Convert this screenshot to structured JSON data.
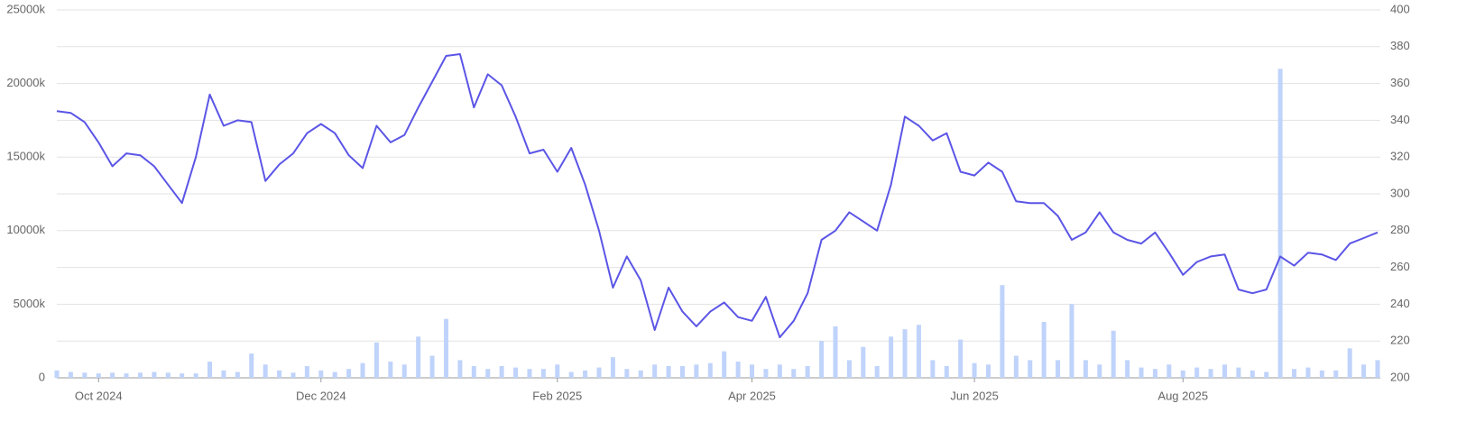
{
  "chart_data": {
    "type": "combo",
    "categories": [
      null,
      null,
      null,
      "Oct 2024",
      null,
      null,
      null,
      null,
      null,
      null,
      null,
      null,
      null,
      null,
      null,
      null,
      null,
      null,
      null,
      "Dec 2024",
      null,
      null,
      null,
      null,
      null,
      null,
      null,
      null,
      null,
      null,
      null,
      null,
      null,
      null,
      null,
      null,
      "Feb 2025",
      null,
      null,
      null,
      null,
      null,
      null,
      null,
      null,
      null,
      null,
      null,
      null,
      null,
      "Apr 2025",
      null,
      null,
      null,
      null,
      null,
      null,
      null,
      null,
      null,
      null,
      null,
      null,
      null,
      null,
      null,
      "Jun 2025",
      null,
      null,
      null,
      null,
      null,
      null,
      null,
      null,
      null,
      null,
      null,
      null,
      null,
      null,
      "Aug 2025",
      null,
      null,
      null,
      null,
      null,
      null,
      null,
      null,
      null,
      null,
      null,
      null,
      null,
      null
    ],
    "series": [
      {
        "type": "bar",
        "color": "#bfd3fb",
        "values": [
          500,
          400,
          350,
          300,
          350,
          300,
          350,
          400,
          350,
          300,
          300,
          1100,
          500,
          400,
          1650,
          900,
          500,
          350,
          800,
          500,
          400,
          600,
          1000,
          2400,
          1100,
          900,
          2800,
          1500,
          4000,
          1200,
          800,
          600,
          800,
          700,
          600,
          600,
          900,
          400,
          500,
          700,
          1400,
          600,
          500,
          900,
          800,
          800,
          900,
          1000,
          1800,
          1100,
          900,
          600,
          900,
          600,
          800,
          2500,
          3500,
          1200,
          2100,
          800,
          2800,
          3300,
          3600,
          1200,
          800,
          2600,
          1000,
          900,
          6300,
          1500,
          1200,
          3800,
          1200,
          5000,
          1200,
          900,
          3200,
          1200,
          700,
          600,
          900,
          500,
          700,
          600,
          900,
          700,
          500,
          400,
          21000,
          600,
          700,
          500,
          500,
          2000,
          900,
          1200
        ]
      },
      {
        "type": "line",
        "axis": "y2",
        "color": "#5b55e6",
        "values": [
          345,
          344,
          339,
          328,
          315,
          322,
          321,
          315,
          305,
          295,
          320,
          354,
          337,
          340,
          339,
          307,
          316,
          322,
          333,
          338,
          333,
          321,
          314,
          337,
          328,
          332,
          347,
          361,
          375,
          376,
          347,
          365,
          359,
          342,
          322,
          324,
          312,
          325,
          305,
          280,
          249,
          266,
          253,
          226,
          249,
          236,
          228,
          236,
          241,
          233,
          231,
          244,
          222,
          231,
          246,
          275,
          280,
          290,
          285,
          280,
          305,
          342,
          337,
          329,
          333,
          312,
          310,
          317,
          312,
          296,
          295,
          295,
          288,
          275,
          279,
          290,
          279,
          275,
          273,
          279,
          268,
          256,
          263,
          266,
          267,
          248,
          246,
          248,
          266,
          261,
          268,
          267,
          264,
          273,
          276,
          279
        ]
      }
    ],
    "ylim": [
      0,
      25000
    ],
    "yticks": [
      0,
      {
        "value": 5000,
        "label": "5000k"
      },
      {
        "value": 10000,
        "label": "10000k"
      },
      {
        "value": 15000,
        "label": "15000k"
      },
      {
        "value": 20000,
        "label": "20000k"
      },
      {
        "value": 25000,
        "label": "25000k"
      }
    ],
    "y2lim": [
      200,
      400
    ],
    "y2ticks": [
      200,
      220,
      240,
      260,
      280,
      300,
      320,
      340,
      360,
      380,
      400
    ],
    "grid": true
  }
}
